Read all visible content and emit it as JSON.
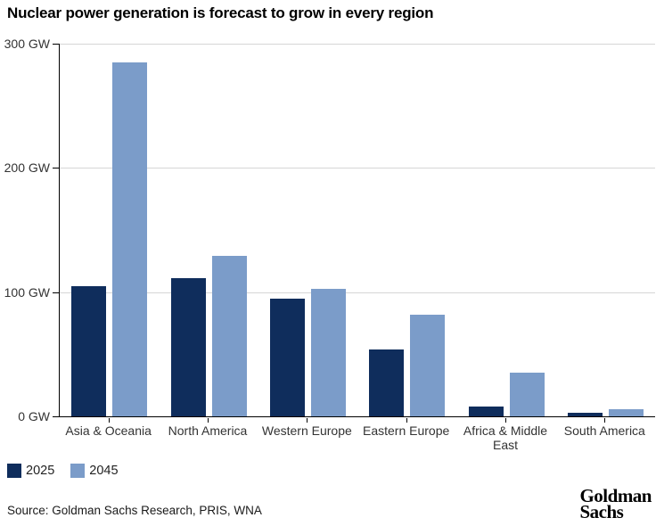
{
  "title": "Nuclear power generation is forecast to grow in every region",
  "chart_data": {
    "type": "bar",
    "categories": [
      "Asia & Oceania",
      "North America",
      "Western Europe",
      "Eastern Europe",
      "Africa & Middle East",
      "South America"
    ],
    "series": [
      {
        "name": "2025",
        "color": "#0f2d5c",
        "values": [
          105,
          111,
          95,
          54,
          8,
          3
        ]
      },
      {
        "name": "2045",
        "color": "#7b9cc9",
        "values": [
          285,
          129,
          103,
          82,
          35,
          6
        ]
      }
    ],
    "title": "Nuclear power generation is forecast to grow in every region",
    "xlabel": "",
    "ylabel": "GW",
    "ylim": [
      0,
      300
    ],
    "y_ticks": [
      {
        "label": "300 GW",
        "value": 300
      },
      {
        "label": "200 GW",
        "value": 200
      },
      {
        "label": "100 GW",
        "value": 100
      },
      {
        "label": "0 GW",
        "value": 0
      }
    ],
    "grid": "horizontal",
    "legend_position": "bottom-left"
  },
  "legend": {
    "items": [
      {
        "label": "2025",
        "color": "#0f2d5c"
      },
      {
        "label": "2045",
        "color": "#7b9cc9"
      }
    ]
  },
  "source": "Source: Goldman Sachs Research, PRIS, WNA",
  "brand": {
    "line1": "Goldman",
    "line2": "Sachs"
  }
}
